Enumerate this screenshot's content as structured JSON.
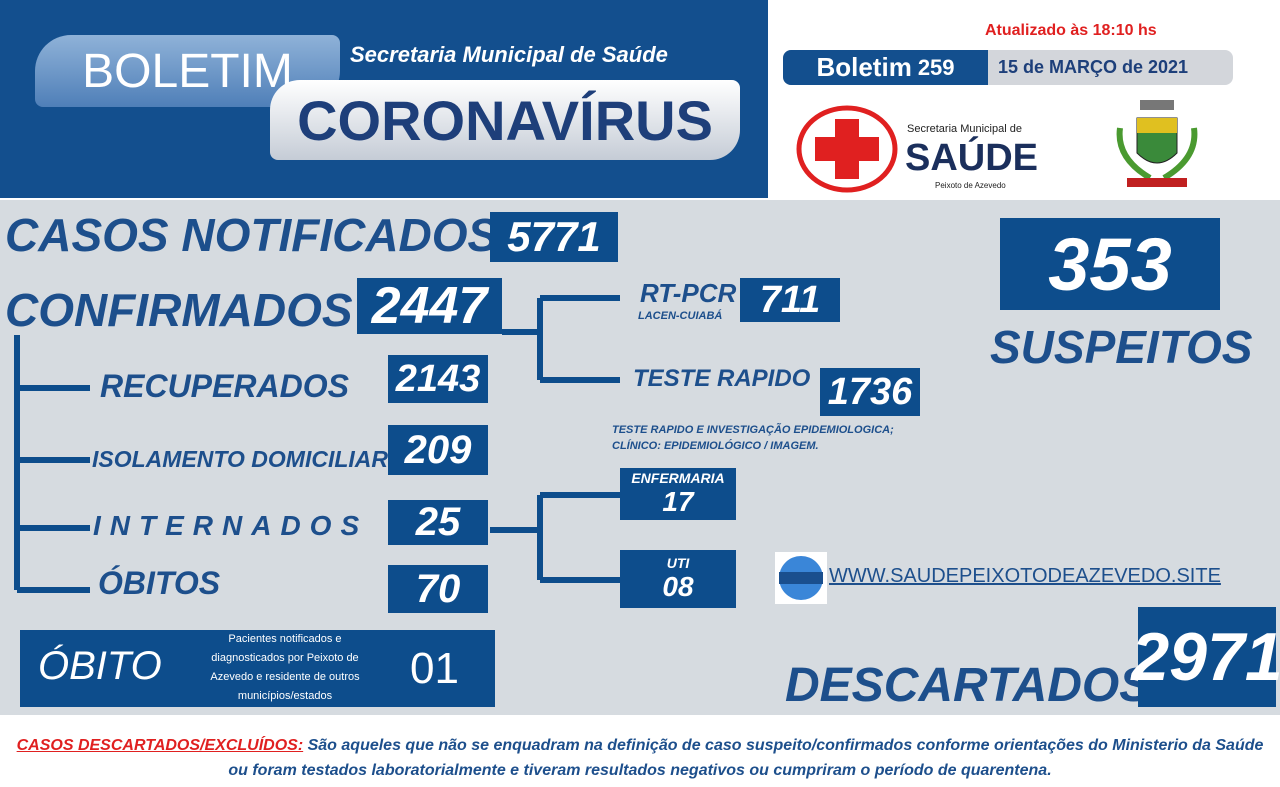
{
  "header": {
    "boletim": "BOLETIM",
    "secretaria": "Secretaria Municipal de Saúde",
    "coronavirus": "CORONAVÍRUS",
    "updated": "Atualizado às 18:10 hs",
    "bulletin_label": "Boletim",
    "bulletin_number": "259",
    "date": "15 de MARÇO de 2021",
    "logo": {
      "line1": "Secretaria Municipal de",
      "title": "SAÚDE",
      "city": "Peixoto de Azevedo"
    }
  },
  "stats": {
    "notificados": {
      "label": "CASOS NOTIFICADOS",
      "value": "5771"
    },
    "confirmados": {
      "label": "CONFIRMADOS",
      "value": "2447"
    },
    "rtpcr": {
      "label": "RT-PCR",
      "sub": "LACEN-CUIABÁ",
      "value": "711"
    },
    "teste_rapido": {
      "label": "TESTE RAPIDO",
      "value": "1736"
    },
    "teste_note": [
      "TESTE RAPIDO  E INVESTIGAÇÃO EPIDEMIOLOGICA;",
      "CLÍNICO: EPIDEMIOLÓGICO / IMAGEM."
    ],
    "recuperados": {
      "label": "RECUPERADOS",
      "value": "2143"
    },
    "isolamento": {
      "label": "ISOLAMENTO DOMICILIAR",
      "value": "209"
    },
    "internados": {
      "label": "INTERNADOS",
      "value": "25"
    },
    "obitos": {
      "label": "ÓBITOS",
      "value": "70"
    },
    "enfermaria": {
      "label": "ENFERMARIA",
      "value": "17"
    },
    "uti": {
      "label": "UTI",
      "value": "08"
    },
    "suspeitos": {
      "label": "SUSPEITOS",
      "value": "353"
    },
    "website": "WWW.SAUDEPEIXOTODEAZEVEDO.SITE",
    "obito_externo": {
      "label": "ÓBITO",
      "note": [
        "Pacientes notificados e",
        "diagnosticados por Peixoto de",
        "Azevedo e residente de outros",
        "municípios/estados"
      ],
      "value": "01"
    },
    "descartados": {
      "label": "DESCARTADOS",
      "value": "2971"
    }
  },
  "footer": {
    "term": "CASOS DESCARTADOS/EXCLUÍDOS:",
    "text": " São aqueles que não se enquadram na definição de caso suspeito/confirmados conforme orientações do Ministerio da Saúde ou foram testados laboratorialmente e tiveram resultados negativos ou cumpriram o período de quarentena."
  }
}
